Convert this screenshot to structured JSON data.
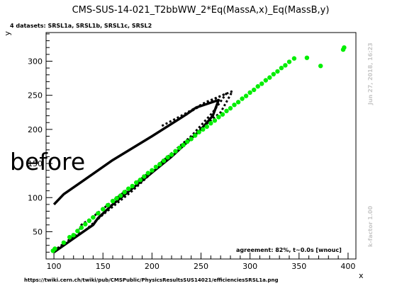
{
  "title": "CMS-SUS-14-021_T2bbWW_2*Eq(MassA,x)_Eq(MassB,y)",
  "datasets_label": "4 datasets: SRSL1a, SRSL1b, SRSL1c, SRSL2",
  "overlay_text": "before",
  "agreement_text": "agreement: 82%, t~0.0s [wnouc]",
  "url_text": "https://twiki.cern.ch/twiki/pub/CMSPublic/PhysicsResultsSUS14021/efficienciesSRSL1a.png",
  "side_date": "Jun 27, 2018, 16:23",
  "side_kfactor": "k-factor 1.00",
  "colors": {
    "points": "#00ee00",
    "lines": "#000000",
    "side_text": "#c8c8c8"
  },
  "chart_data": {
    "type": "scatter",
    "xlabel": "x",
    "ylabel": "y",
    "xlim": [
      92,
      408
    ],
    "ylim": [
      10,
      342
    ],
    "x_ticks": [
      100,
      150,
      200,
      250,
      300,
      350,
      400
    ],
    "y_ticks": [
      50,
      100,
      150,
      200,
      250,
      300
    ],
    "grid": false,
    "points": [
      [
        99,
        22
      ],
      [
        101,
        25
      ],
      [
        110,
        34
      ],
      [
        116,
        42
      ],
      [
        120,
        45
      ],
      [
        124,
        51
      ],
      [
        128,
        56
      ],
      [
        132,
        61
      ],
      [
        136,
        66
      ],
      [
        140,
        71
      ],
      [
        145,
        77
      ],
      [
        150,
        83
      ],
      [
        155,
        89
      ],
      [
        160,
        95
      ],
      [
        164,
        99
      ],
      [
        168,
        103
      ],
      [
        172,
        108
      ],
      [
        176,
        113
      ],
      [
        180,
        117
      ],
      [
        184,
        122
      ],
      [
        188,
        126
      ],
      [
        192,
        131
      ],
      [
        196,
        136
      ],
      [
        200,
        140
      ],
      [
        204,
        145
      ],
      [
        208,
        149
      ],
      [
        212,
        154
      ],
      [
        216,
        159
      ],
      [
        220,
        163
      ],
      [
        224,
        168
      ],
      [
        228,
        173
      ],
      [
        232,
        177
      ],
      [
        236,
        182
      ],
      [
        240,
        186
      ],
      [
        244,
        191
      ],
      [
        248,
        196
      ],
      [
        252,
        200
      ],
      [
        256,
        204
      ],
      [
        260,
        209
      ],
      [
        264,
        213
      ],
      [
        268,
        218
      ],
      [
        272,
        222
      ],
      [
        276,
        227
      ],
      [
        280,
        231
      ],
      [
        284,
        236
      ],
      [
        288,
        240
      ],
      [
        292,
        245
      ],
      [
        296,
        249
      ],
      [
        300,
        254
      ],
      [
        304,
        258
      ],
      [
        308,
        263
      ],
      [
        312,
        267
      ],
      [
        316,
        272
      ],
      [
        320,
        276
      ],
      [
        324,
        281
      ],
      [
        328,
        285
      ],
      [
        332,
        290
      ],
      [
        336,
        294
      ],
      [
        340,
        299
      ],
      [
        345,
        304
      ],
      [
        358,
        305
      ],
      [
        372,
        293
      ],
      [
        395,
        317
      ],
      [
        396,
        320
      ]
    ],
    "solid_contour": [
      [
        100,
        20
      ],
      [
        120,
        40
      ],
      [
        140,
        60
      ],
      [
        145,
        70
      ],
      [
        160,
        90
      ],
      [
        190,
        125
      ],
      [
        220,
        160
      ],
      [
        250,
        200
      ],
      [
        262,
        220
      ],
      [
        268,
        243
      ],
      [
        245,
        232
      ],
      [
        235,
        222
      ],
      [
        222,
        210
      ],
      [
        200,
        190
      ],
      [
        160,
        155
      ],
      [
        130,
        125
      ],
      [
        110,
        105
      ],
      [
        100,
        90
      ]
    ],
    "dotted_contour_outer": [
      [
        100,
        22
      ],
      [
        125,
        48
      ],
      [
        128,
        60
      ],
      [
        140,
        72
      ],
      [
        160,
        95
      ],
      [
        200,
        140
      ],
      [
        240,
        190
      ],
      [
        270,
        225
      ],
      [
        282,
        256
      ],
      [
        255,
        240
      ],
      [
        230,
        220
      ],
      [
        210,
        205
      ]
    ],
    "dotted_contour_inner": [
      [
        132,
        52
      ],
      [
        150,
        75
      ],
      [
        180,
        110
      ],
      [
        210,
        150
      ],
      [
        240,
        190
      ],
      [
        262,
        225
      ],
      [
        276,
        253
      ],
      [
        250,
        235
      ],
      [
        238,
        225
      ]
    ]
  }
}
